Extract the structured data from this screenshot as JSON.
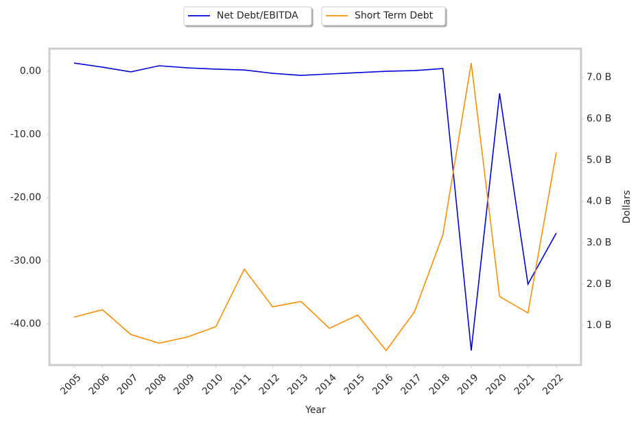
{
  "chart_data": {
    "type": "line",
    "x": [
      2005,
      2006,
      2007,
      2008,
      2009,
      2010,
      2011,
      2012,
      2013,
      2014,
      2015,
      2016,
      2017,
      2018,
      2019,
      2020,
      2021,
      2022
    ],
    "series": [
      {
        "name": "Net Debt/EBITDA",
        "color": "#0000dd",
        "axis": "y",
        "values": [
          1.3,
          0.65,
          -0.1,
          0.87,
          0.54,
          0.33,
          0.2,
          -0.33,
          -0.65,
          -0.43,
          -0.22,
          0,
          0.1,
          0.43,
          -44.2,
          -3.5,
          -33.7,
          -25.6
        ]
      },
      {
        "name": "Short Term Debt",
        "color": "#ff8c00",
        "axis": "y2",
        "values": [
          1.2,
          1.38,
          0.78,
          0.57,
          0.72,
          0.97,
          2.36,
          1.45,
          1.58,
          0.93,
          1.25,
          0.39,
          1.33,
          3.19,
          7.35,
          1.7,
          1.3,
          5.19
        ]
      }
    ],
    "xlabel": "Year",
    "y2label": "Dollars",
    "xlim": [
      2004.13,
      2022.87
    ],
    "xticks": [
      2005,
      2006,
      2007,
      2008,
      2009,
      2010,
      2011,
      2012,
      2013,
      2014,
      2015,
      2016,
      2017,
      2018,
      2019,
      2020,
      2021,
      2022
    ],
    "ylim": [
      -46.5,
      3.58
    ],
    "yticks": [
      {
        "value": -40,
        "label": "-40.00"
      },
      {
        "value": -30,
        "label": "-30.00"
      },
      {
        "value": -20,
        "label": "-20.00"
      },
      {
        "value": -10,
        "label": "-10.00"
      },
      {
        "value": 0,
        "label": "0.00"
      }
    ],
    "y2lim": [
      0.04,
      7.7
    ],
    "y2ticks": [
      {
        "value": 1,
        "label": "1.0 B"
      },
      {
        "value": 2,
        "label": "2.0 B"
      },
      {
        "value": 3,
        "label": "3.0 B"
      },
      {
        "value": 4,
        "label": "4.0 B"
      },
      {
        "value": 5,
        "label": "5.0 B"
      },
      {
        "value": 6,
        "label": "6.0 B"
      },
      {
        "value": 7,
        "label": "7.0 B"
      }
    ],
    "grid": false,
    "legend": "top"
  }
}
